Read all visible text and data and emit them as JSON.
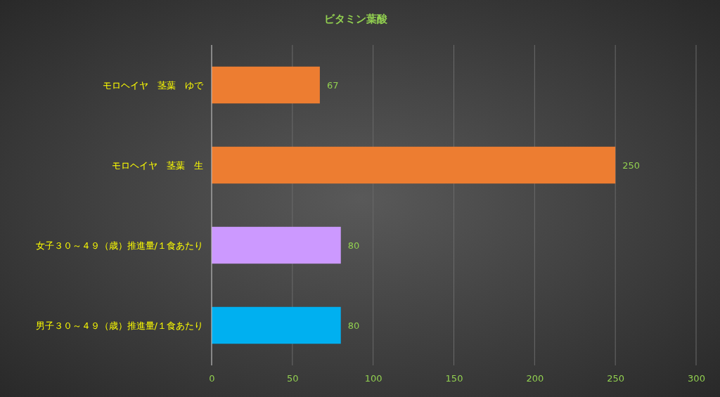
{
  "chart_data": {
    "type": "bar",
    "orientation": "horizontal",
    "title": "ビタミン葉酸",
    "categories": [
      "モロヘイヤ　茎葉　ゆで",
      "モロヘイヤ　茎葉　生",
      "女子３０～４９（歳）推進量/１食あたり",
      "男子３０～４９（歳）推進量/１食あたり"
    ],
    "values": [
      67,
      250,
      80,
      80
    ],
    "colors": [
      "#ed7d31",
      "#ed7d31",
      "#cc99ff",
      "#00b0f0"
    ],
    "xlim": [
      0,
      300
    ],
    "xticks": [
      0,
      50,
      100,
      150,
      200,
      250,
      300
    ],
    "grid": "x",
    "data_labels": true
  }
}
